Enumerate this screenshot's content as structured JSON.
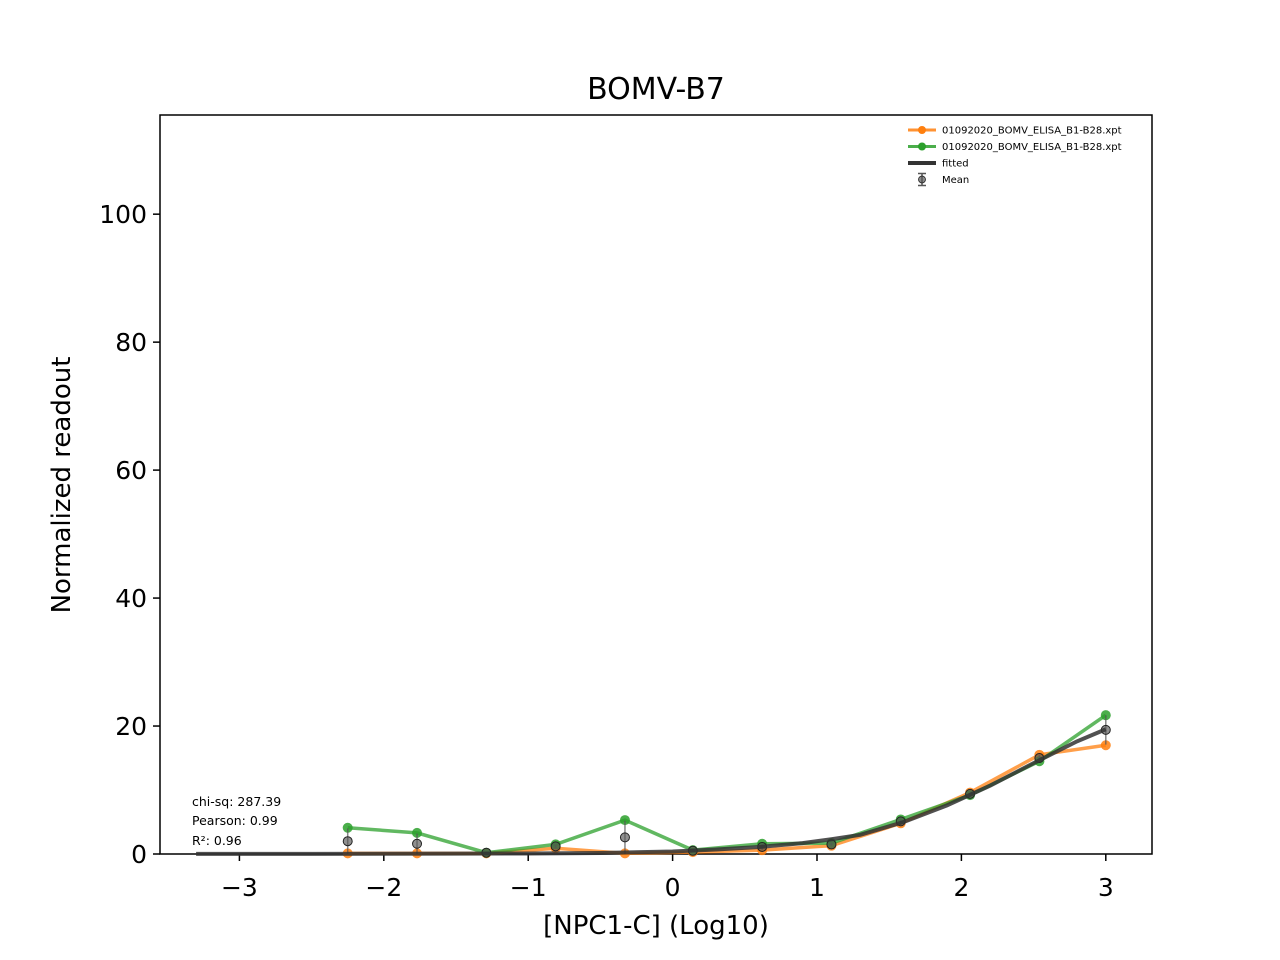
{
  "chart_data": {
    "type": "line",
    "title": "BOMV-B7",
    "xlabel": "[NPC1-C] (Log10)",
    "ylabel": "Normalized readout",
    "xlim": [
      -3.55,
      3.32
    ],
    "ylim": [
      0,
      115.5
    ],
    "x_ticks": [
      -3,
      -2,
      -1,
      0,
      1,
      2,
      3
    ],
    "x_tick_labels": [
      "−3",
      "−2",
      "−1",
      "0",
      "1",
      "2",
      "3"
    ],
    "y_ticks": [
      0,
      20,
      40,
      60,
      80,
      100
    ],
    "y_tick_labels": [
      "0",
      "20",
      "40",
      "60",
      "80",
      "100"
    ],
    "grid": false,
    "legend_position": "top-right",
    "x": [
      -2.25,
      -1.77,
      -1.29,
      -0.81,
      -0.33,
      0.14,
      0.62,
      1.1,
      1.58,
      2.06,
      2.54,
      3.0
    ],
    "series": [
      {
        "name": "01092020_BOMV_ELISA_B1-B28.xpt",
        "color": "#ff7f0e",
        "values": [
          0.1,
          0.1,
          0.1,
          0.9,
          0.1,
          0.3,
          0.6,
          1.3,
          4.8,
          9.6,
          15.5,
          17.0
        ]
      },
      {
        "name": "01092020_BOMV_ELISA_B1-B28.xpt",
        "color": "#2ca02c",
        "values": [
          4.1,
          3.3,
          0.2,
          1.5,
          5.3,
          0.6,
          1.6,
          1.7,
          5.4,
          9.2,
          14.5,
          21.7
        ]
      }
    ],
    "mean": {
      "name": "Mean",
      "color": "#555555",
      "values": [
        2.0,
        1.6,
        0.2,
        1.2,
        2.6,
        0.5,
        1.1,
        1.5,
        5.1,
        9.4,
        15.0,
        19.4
      ],
      "errors": [
        2.0,
        1.6,
        0.1,
        0.3,
        2.6,
        0.15,
        0.5,
        0.2,
        0.3,
        0.2,
        0.5,
        2.3
      ]
    },
    "fitted": {
      "name": "fitted",
      "color": "#333333",
      "x": [
        -3.3,
        -2.5,
        -2.0,
        -1.5,
        -1.0,
        -0.5,
        0.0,
        0.3,
        0.6,
        0.9,
        1.1,
        1.3,
        1.6,
        1.9,
        2.2,
        2.5,
        2.8,
        3.0
      ],
      "values": [
        0.01,
        0.02,
        0.03,
        0.05,
        0.08,
        0.15,
        0.4,
        0.7,
        1.1,
        1.7,
        2.3,
        3.0,
        5.0,
        7.6,
        10.7,
        14.2,
        17.6,
        19.5
      ]
    },
    "stats": {
      "chisq": "chi-sq: 287.39",
      "pearson": "Pearson: 0.99",
      "r2": "R²: 0.96"
    }
  }
}
